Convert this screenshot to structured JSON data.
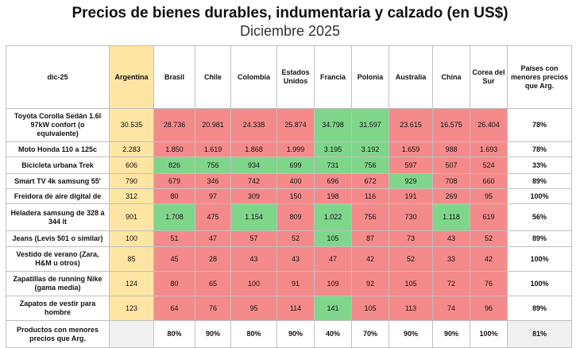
{
  "header": {
    "title": "Precios de bienes durables, indumentaria y calzado (en US$)",
    "subtitle": "Diciembre 2025"
  },
  "table": {
    "corner": "dic-25",
    "columns": [
      "Argentina",
      "Brasil",
      "Chile",
      "Colombia",
      "Estados Unidos",
      "Francia",
      "Polonia",
      "Australia",
      "China",
      "Corea del Sur"
    ],
    "summary_header": "Países con menores precios que Arg.",
    "rows": [
      {
        "label": "Toyota Corolla Sedán 1.6l 97kW confort (o equivalente)",
        "values": [
          "30.535",
          "28.736",
          "20.981",
          "24.338",
          "25.874",
          "34.798",
          "31.597",
          "23.615",
          "16.575",
          "26.404"
        ],
        "colors": [
          "arg",
          "red",
          "red",
          "red",
          "red",
          "green",
          "green",
          "red",
          "red",
          "red"
        ],
        "summary": "78%"
      },
      {
        "label": "Moto Honda 110 a 125c",
        "values": [
          "2.283",
          "1.850",
          "1.619",
          "1.868",
          "1.999",
          "3.195",
          "3.192",
          "1.659",
          "988",
          "1.693"
        ],
        "colors": [
          "arg",
          "red",
          "red",
          "red",
          "red",
          "green",
          "green",
          "red",
          "red",
          "red"
        ],
        "summary": "78%"
      },
      {
        "label": "Bicicleta urbana Trek",
        "values": [
          "606",
          "826",
          "756",
          "934",
          "699",
          "731",
          "756",
          "597",
          "507",
          "524"
        ],
        "colors": [
          "arg",
          "green",
          "green",
          "green",
          "green",
          "green",
          "green",
          "red",
          "red",
          "red"
        ],
        "summary": "33%"
      },
      {
        "label": "Smart TV 4k samsung 55'",
        "values": [
          "790",
          "679",
          "346",
          "742",
          "400",
          "696",
          "672",
          "929",
          "708",
          "660"
        ],
        "colors": [
          "arg",
          "red",
          "red",
          "red",
          "red",
          "red",
          "red",
          "green",
          "red",
          "red"
        ],
        "summary": "89%"
      },
      {
        "label": "Freidora de aire digital de",
        "values": [
          "312",
          "80",
          "97",
          "309",
          "150",
          "198",
          "116",
          "191",
          "269",
          "95"
        ],
        "colors": [
          "arg",
          "red",
          "red",
          "red",
          "red",
          "red",
          "red",
          "red",
          "red",
          "red"
        ],
        "summary": "100%"
      },
      {
        "label": "Heladera samsung de 328 a 344 lt",
        "values": [
          "901",
          "1.708",
          "475",
          "1.154",
          "809",
          "1.022",
          "756",
          "730",
          "1.118",
          "619"
        ],
        "colors": [
          "arg",
          "green",
          "red",
          "green",
          "red",
          "green",
          "red",
          "red",
          "green",
          "red"
        ],
        "summary": "56%"
      },
      {
        "label": "Jeans (Levis 501 o similar)",
        "values": [
          "100",
          "51",
          "47",
          "57",
          "52",
          "105",
          "87",
          "73",
          "43",
          "52"
        ],
        "colors": [
          "arg",
          "red",
          "red",
          "red",
          "red",
          "green",
          "red",
          "red",
          "red",
          "red"
        ],
        "summary": "89%"
      },
      {
        "label": "Vestido de verano (Zara, H&M u otros)",
        "values": [
          "85",
          "45",
          "28",
          "43",
          "43",
          "47",
          "42",
          "52",
          "33",
          "42"
        ],
        "colors": [
          "arg",
          "red",
          "red",
          "red",
          "red",
          "red",
          "red",
          "red",
          "red",
          "red"
        ],
        "summary": "100%"
      },
      {
        "label": "Zapatillas de running Nike (gama media)",
        "values": [
          "124",
          "80",
          "65",
          "100",
          "91",
          "109",
          "92",
          "105",
          "72",
          "76"
        ],
        "colors": [
          "arg",
          "red",
          "red",
          "red",
          "red",
          "red",
          "red",
          "red",
          "red",
          "red"
        ],
        "summary": "100%"
      },
      {
        "label": "Zapatos de vestir para hombre",
        "values": [
          "123",
          "64",
          "76",
          "95",
          "114",
          "141",
          "105",
          "113",
          "74",
          "96"
        ],
        "colors": [
          "arg",
          "red",
          "red",
          "red",
          "red",
          "green",
          "red",
          "red",
          "red",
          "red"
        ],
        "summary": "89%"
      }
    ],
    "footer": {
      "label": "Productos con menores precios que Arg.",
      "values": [
        "",
        "80%",
        "90%",
        "80%",
        "90%",
        "40%",
        "70%",
        "90%",
        "90%",
        "100%"
      ],
      "summary": "81%"
    }
  },
  "colors": {
    "argentina": "#ffe5a3",
    "cheaper": "#f58a8a",
    "more_expensive": "#7fd68b"
  }
}
